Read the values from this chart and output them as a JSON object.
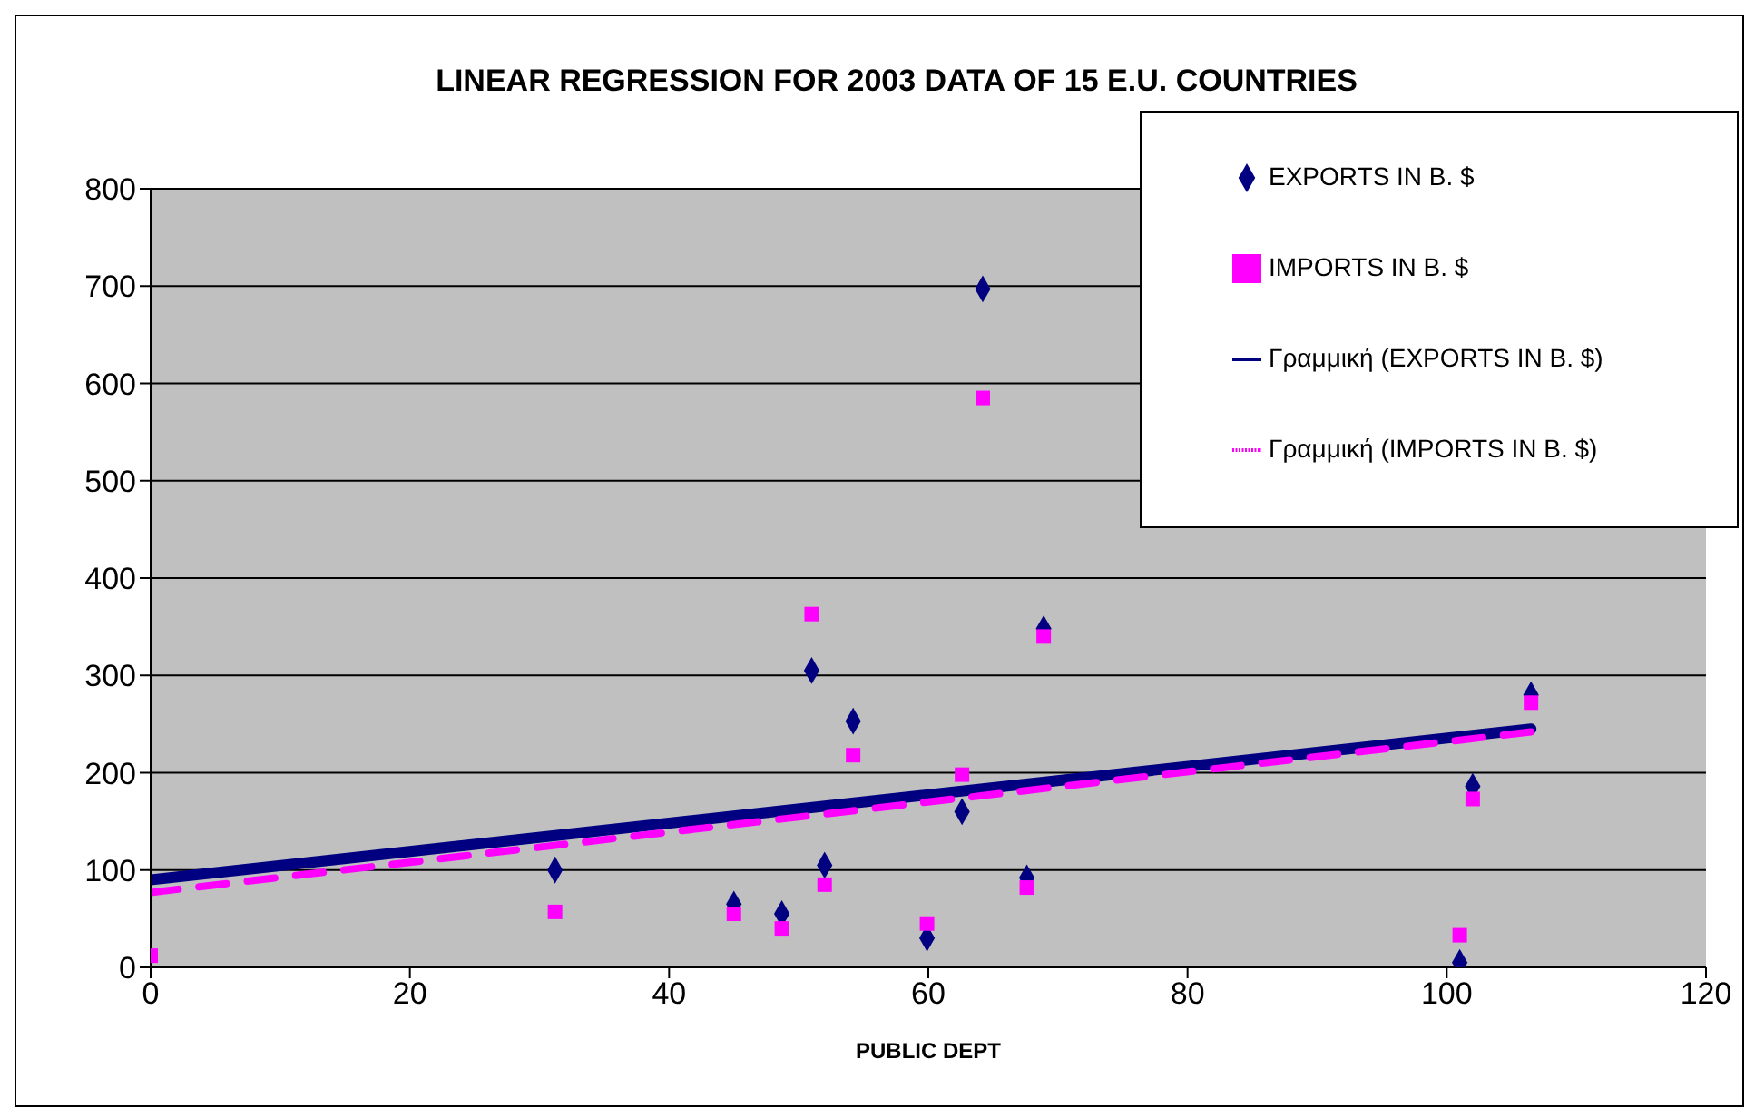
{
  "chart_data": {
    "type": "scatter",
    "title": "LINEAR REGRESSION FOR 2003 DATA OF 15 E.U. COUNTRIES",
    "xlabel": "PUBLIC DEPT",
    "xlim": [
      0,
      120
    ],
    "xticks": [
      0,
      20,
      40,
      60,
      80,
      100,
      120
    ],
    "ylim": [
      0,
      800
    ],
    "yticks": [
      0,
      100,
      200,
      300,
      400,
      500,
      600,
      700,
      800
    ],
    "grid": "y",
    "legend": "top right",
    "series": [
      {
        "name": "EXPORTS IN B. $",
        "type": "scatter",
        "marker": "diamond",
        "color": "#000080",
        "x": [
          31.2,
          45,
          48.7,
          51,
          52,
          54.2,
          59.9,
          62.6,
          64.2,
          67.6,
          68.9,
          101,
          102,
          106.5
        ],
        "values": [
          100,
          65,
          55,
          305,
          105,
          253,
          30,
          160,
          697,
          92,
          348,
          5,
          186,
          280
        ]
      },
      {
        "name": "IMPORTS IN B. $",
        "type": "scatter",
        "marker": "square",
        "color": "#ff00ff",
        "x": [
          0,
          31.2,
          45,
          48.7,
          51,
          52,
          54.2,
          59.9,
          62.6,
          64.2,
          67.6,
          68.9,
          101,
          102,
          106.5
        ],
        "values": [
          12,
          57,
          55,
          40,
          363,
          85,
          218,
          45,
          198,
          585,
          82,
          340,
          33,
          173,
          272
        ]
      },
      {
        "name": "Γραμμική (EXPORTS IN B. $)",
        "type": "line",
        "line_style": "solid",
        "color": "#000080",
        "x": [
          0,
          106.5
        ],
        "values": [
          90,
          245
        ]
      },
      {
        "name": "Γραμμική (IMPORTS IN B. $)",
        "type": "line",
        "line_style": "dashed",
        "color": "#ff00ff",
        "x": [
          0,
          106.5
        ],
        "values": [
          77,
          242
        ]
      }
    ]
  }
}
